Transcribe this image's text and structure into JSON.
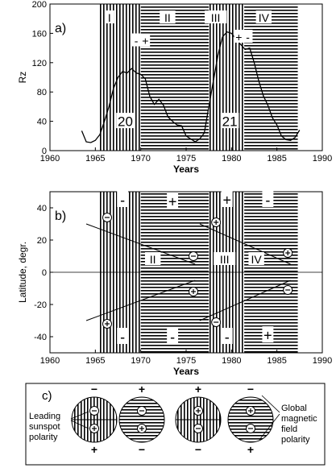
{
  "chart_data": [
    {
      "panel": "a)",
      "type": "line",
      "xlabel": "Years",
      "ylabel": "Rz",
      "xlim": [
        1960,
        1990
      ],
      "ylim": [
        0,
        200
      ],
      "xticks": [
        "1960",
        "1965",
        "1970",
        "1975",
        "1980",
        "1985",
        "1990"
      ],
      "yticks": [
        "0",
        "40",
        "80",
        "120",
        "160",
        "200"
      ],
      "regions": [
        {
          "label": "I",
          "from": 1965.5,
          "to": 1970,
          "pattern": "vertical"
        },
        {
          "label": "II",
          "from": 1970,
          "to": 1977.5,
          "pattern": "horizontal"
        },
        {
          "label": "III",
          "from": 1977.5,
          "to": 1981.4,
          "pattern": "vertical"
        },
        {
          "label": "IV",
          "from": 1981.4,
          "to": 1987.3,
          "pattern": "horizontal"
        }
      ],
      "cycle_labels": [
        {
          "text": "20",
          "x": 1968.3,
          "y": 40
        },
        {
          "text": "21",
          "x": 1979.8,
          "y": 40
        }
      ],
      "annotations": [
        {
          "text": "-",
          "x": 1969.5,
          "y": 150
        },
        {
          "text": "+",
          "x": 1970.5,
          "y": 150
        },
        {
          "text": "+",
          "x": 1980.8,
          "y": 155
        },
        {
          "text": "-",
          "x": 1981.8,
          "y": 155
        }
      ],
      "series": [
        {
          "x": [
            1963.5,
            1964,
            1964.5,
            1965,
            1965.5,
            1966,
            1966.5,
            1967,
            1967.5,
            1968,
            1968.5,
            1969,
            1969.5,
            1970,
            1970.5,
            1971,
            1971.5,
            1972,
            1972.5,
            1973,
            1973.5,
            1974,
            1974.5,
            1975,
            1975.5,
            1976,
            1976.5,
            1977,
            1977.5,
            1978,
            1978.5,
            1979,
            1979.5,
            1980,
            1980.5,
            1981,
            1981.5,
            1982,
            1982.5,
            1983,
            1983.5,
            1984,
            1984.5,
            1985,
            1985.5,
            1986,
            1986.5,
            1987,
            1987.5
          ],
          "y": [
            27,
            12,
            11,
            14,
            22,
            40,
            60,
            85,
            100,
            108,
            106,
            112,
            106,
            104,
            98,
            74,
            63,
            70,
            62,
            46,
            40,
            35,
            34,
            20,
            16,
            12,
            16,
            24,
            60,
            95,
            130,
            155,
            162,
            160,
            152,
            145,
            138,
            140,
            120,
            95,
            75,
            62,
            45,
            35,
            20,
            15,
            14,
            18,
            28
          ]
        }
      ]
    },
    {
      "panel": "b)",
      "type": "scatter",
      "xlabel": "Years",
      "ylabel": "Latitude, degr.",
      "xlim": [
        1960,
        1990
      ],
      "ylim": [
        -50,
        50
      ],
      "xticks": [
        "1960",
        "1965",
        "1970",
        "1975",
        "1980",
        "1985",
        "1990"
      ],
      "yticks": [
        "-40",
        "-20",
        "0",
        "20",
        "40"
      ],
      "regions": [
        {
          "label": "I",
          "from": 1965.5,
          "to": 1970,
          "pattern": "vertical"
        },
        {
          "label": "II",
          "from": 1970,
          "to": 1977.5,
          "pattern": "horizontal"
        },
        {
          "label": "III",
          "from": 1977.5,
          "to": 1981.4,
          "pattern": "vertical"
        },
        {
          "label": "IV",
          "from": 1981.4,
          "to": 1987.3,
          "pattern": "horizontal"
        }
      ],
      "region_labels": [
        {
          "text": "II",
          "x": 1970.8,
          "y": 8
        },
        {
          "text": "III",
          "x": 1978.7,
          "y": 8
        },
        {
          "text": "IV",
          "x": 1982.2,
          "y": 8
        }
      ],
      "trend_lines": [
        {
          "x": [
            1964,
            1976
          ],
          "y": [
            30,
            5
          ]
        },
        {
          "x": [
            1964,
            1976
          ],
          "y": [
            -30,
            -5
          ]
        },
        {
          "x": [
            1976.5,
            1986.5
          ],
          "y": [
            30,
            5
          ]
        },
        {
          "x": [
            1976.5,
            1986.5
          ],
          "y": [
            -30,
            -5
          ]
        }
      ],
      "polarity_points": [
        {
          "x": 1966.3,
          "y": 34,
          "sign": "-"
        },
        {
          "x": 1966.3,
          "y": -32,
          "sign": "+"
        },
        {
          "x": 1975.8,
          "y": 10,
          "sign": "-"
        },
        {
          "x": 1975.8,
          "y": -12,
          "sign": "+"
        },
        {
          "x": 1978.3,
          "y": 31,
          "sign": "+"
        },
        {
          "x": 1978.3,
          "y": -31,
          "sign": "-"
        },
        {
          "x": 1986.2,
          "y": 12,
          "sign": "+"
        },
        {
          "x": 1986.2,
          "y": -11,
          "sign": "-"
        }
      ],
      "field_signs": [
        {
          "text": "-",
          "x": 1968,
          "y": 45
        },
        {
          "text": "+",
          "x": 1973.5,
          "y": 44
        },
        {
          "text": "+",
          "x": 1979.5,
          "y": 45
        },
        {
          "text": "-",
          "x": 1984,
          "y": 45
        },
        {
          "text": "-",
          "x": 1968,
          "y": -40
        },
        {
          "text": "-",
          "x": 1973.5,
          "y": -40
        },
        {
          "text": "-",
          "x": 1979.5,
          "y": -40
        },
        {
          "text": "+",
          "x": 1984,
          "y": -39
        }
      ]
    }
  ],
  "panel_c": {
    "label": "c)",
    "left_label": [
      "Leading",
      "sunspot",
      "polarity"
    ],
    "right_label": [
      "Global",
      "magnetic",
      "field",
      "polarity"
    ],
    "diagrams": [
      {
        "pattern": "vertical",
        "top_sign": "−",
        "bottom_sign": "+",
        "upper_spot": "-",
        "lower_spot": "+"
      },
      {
        "pattern": "horizontal",
        "top_sign": "+",
        "bottom_sign": "−",
        "upper_spot": "-",
        "lower_spot": "+"
      },
      {
        "pattern": "vertical",
        "top_sign": "+",
        "bottom_sign": "−",
        "upper_spot": "+",
        "lower_spot": "-"
      },
      {
        "pattern": "horizontal",
        "top_sign": "−",
        "bottom_sign": "+",
        "upper_spot": "+",
        "lower_spot": "-"
      }
    ]
  }
}
